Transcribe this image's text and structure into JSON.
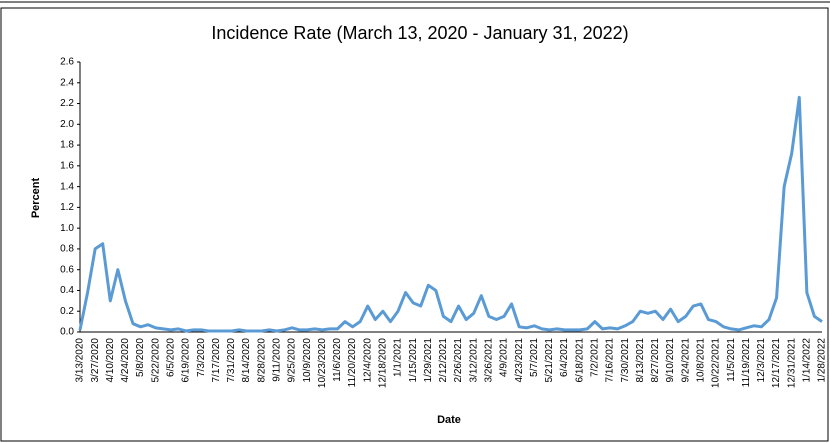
{
  "chart_data": {
    "type": "line",
    "title": "Incidence Rate (March 13, 2020 - January 31, 2022)",
    "xlabel": "Date",
    "ylabel": "Percent",
    "categories": [
      "3/13/2020",
      null,
      "3/27/2020",
      null,
      "4/10/2020",
      null,
      "4/24/2020",
      null,
      "5/8/2020",
      null,
      "5/22/2020",
      null,
      "6/5/2020",
      null,
      "6/19/2020",
      null,
      "7/3/2020",
      null,
      "7/17/2020",
      null,
      "7/31/2020",
      null,
      "8/14/2020",
      null,
      "8/28/2020",
      null,
      "9/11/2020",
      null,
      "9/25/2020",
      null,
      "10/9/2020",
      null,
      "10/23/2020",
      null,
      "11/6/2020",
      null,
      "11/20/2020",
      null,
      "12/4/2020",
      null,
      "12/18/2020",
      null,
      "1/1/2021",
      null,
      "1/15/2021",
      null,
      "1/29/2021",
      null,
      "2/12/2021",
      null,
      "2/26/2021",
      null,
      "3/12/2021",
      null,
      "3/26/2021",
      null,
      "4/9/2021",
      null,
      "4/23/2021",
      null,
      "5/7/2021",
      null,
      "5/21/2021",
      null,
      "6/4/2021",
      null,
      "6/18/2021",
      null,
      "7/2/2021",
      null,
      "7/16/2021",
      null,
      "7/30/2021",
      null,
      "8/13/2021",
      null,
      "8/27/2021",
      null,
      "9/10/2021",
      null,
      "9/24/2021",
      null,
      "10/8/2021",
      null,
      "10/22/2021",
      null,
      "11/5/2021",
      null,
      "11/19/2021",
      null,
      "12/3/2021",
      null,
      "12/17/2021",
      null,
      "12/31/2021",
      null,
      "1/14/2022",
      null,
      "1/28/2022"
    ],
    "series": [
      {
        "name": "Incidence Rate",
        "color": "#5b9bd5",
        "values": [
          0.02,
          0.38,
          0.8,
          0.85,
          0.3,
          0.6,
          0.3,
          0.08,
          0.05,
          0.07,
          0.04,
          0.03,
          0.02,
          0.03,
          0.01,
          0.02,
          0.02,
          0.01,
          0.01,
          0.01,
          0.01,
          0.02,
          0.01,
          0.01,
          0.01,
          0.02,
          0.01,
          0.02,
          0.04,
          0.02,
          0.02,
          0.03,
          0.02,
          0.03,
          0.03,
          0.1,
          0.05,
          0.1,
          0.25,
          0.12,
          0.2,
          0.1,
          0.2,
          0.38,
          0.28,
          0.25,
          0.45,
          0.4,
          0.15,
          0.1,
          0.25,
          0.12,
          0.18,
          0.35,
          0.15,
          0.12,
          0.15,
          0.27,
          0.05,
          0.04,
          0.06,
          0.03,
          0.02,
          0.03,
          0.02,
          0.02,
          0.02,
          0.03,
          0.1,
          0.03,
          0.04,
          0.03,
          0.06,
          0.1,
          0.2,
          0.18,
          0.2,
          0.12,
          0.22,
          0.1,
          0.15,
          0.25,
          0.27,
          0.12,
          0.1,
          0.05,
          0.03,
          0.02,
          0.04,
          0.06,
          0.05,
          0.12,
          0.33,
          1.4,
          1.72,
          2.26,
          0.38,
          0.15,
          0.1
        ]
      }
    ],
    "ylim": [
      0,
      2.6
    ],
    "yticks": [
      {
        "value": 0,
        "label": "0.0"
      },
      0.2,
      0.4,
      0.6,
      0.8,
      {
        "value": 1,
        "label": "1.0"
      },
      1.2,
      1.4,
      1.6,
      1.8,
      {
        "value": 2,
        "label": "2.0"
      },
      2.2,
      2.4,
      2.6
    ]
  }
}
